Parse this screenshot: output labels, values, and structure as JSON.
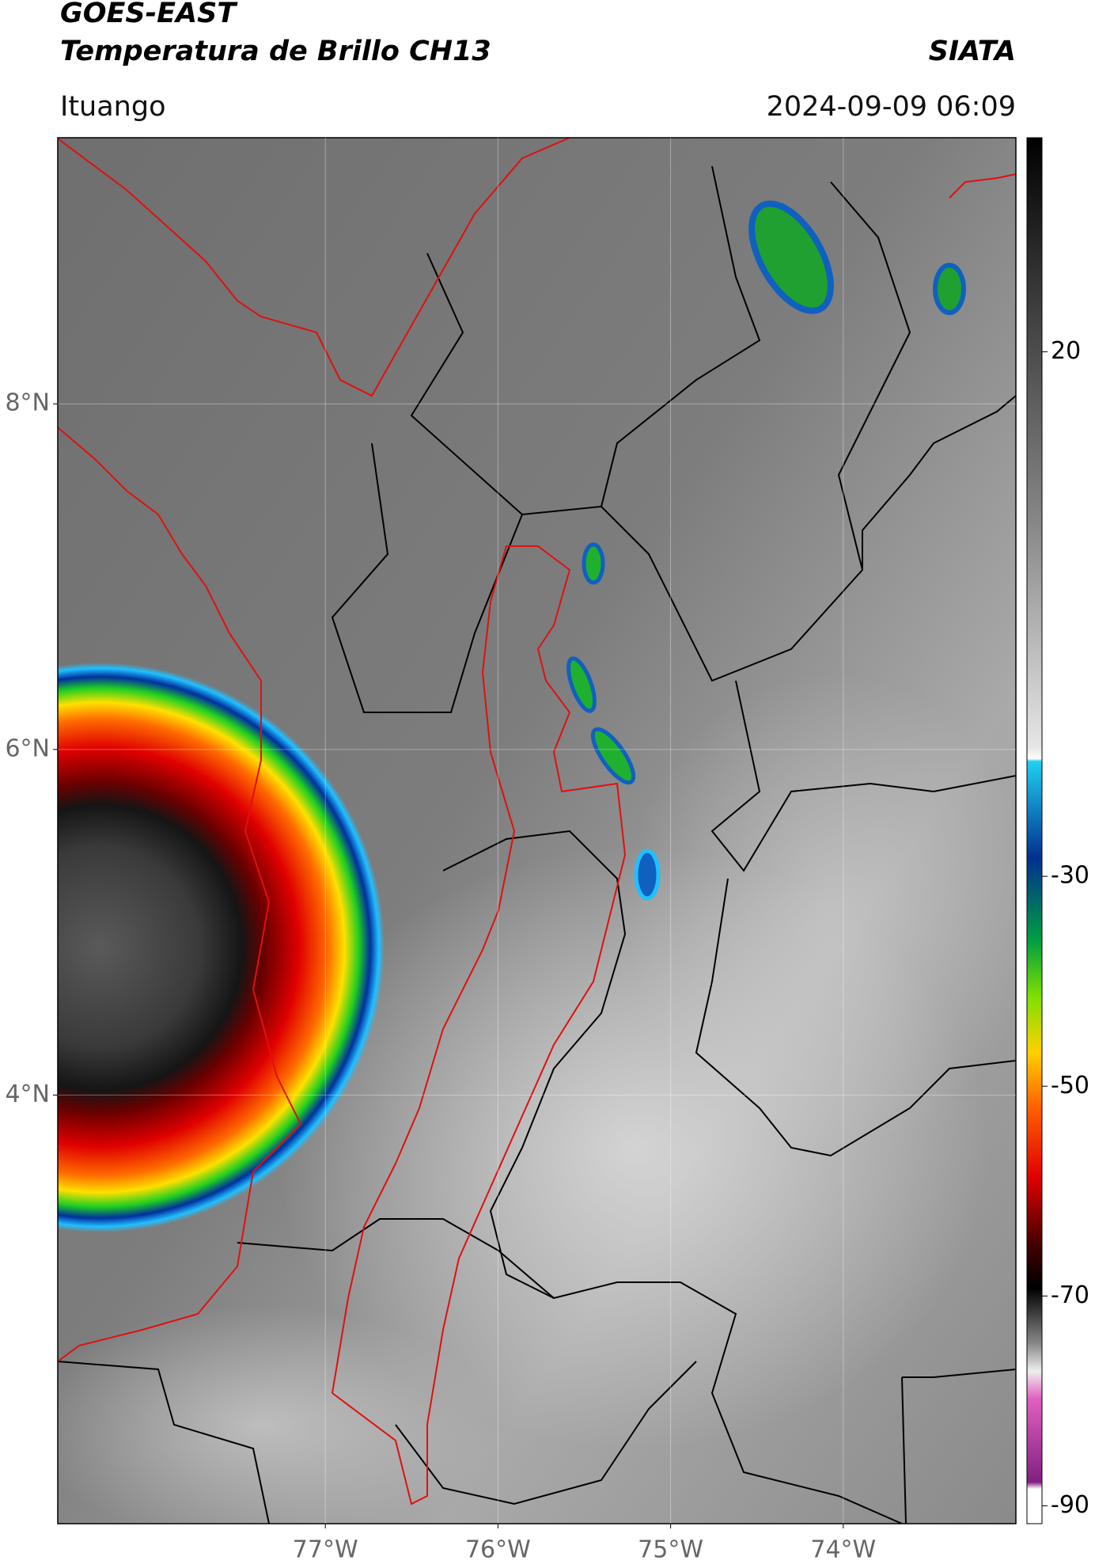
{
  "header": {
    "title_line1": "GOES-EAST",
    "title_line2": "Temperatura de Brillo CH13",
    "organization": "SIATA",
    "location": "Ituango",
    "datetime": "2024-09-09 06:09"
  },
  "map": {
    "xlim": [
      -78.55,
      -73.0
    ],
    "ylim": [
      1.52,
      9.54
    ],
    "xticks": [
      {
        "value": -77,
        "label": "77°W"
      },
      {
        "value": -76,
        "label": "76°W"
      },
      {
        "value": -75,
        "label": "75°W"
      },
      {
        "value": -74,
        "label": "74°W"
      }
    ],
    "yticks": [
      {
        "value": 8,
        "label": "8°N"
      },
      {
        "value": 6,
        "label": "6°N"
      },
      {
        "value": 4,
        "label": "4°N"
      }
    ],
    "grid": true
  },
  "colorbar": {
    "lim": [
      -91.7,
      40.4
    ],
    "ticks": [
      20,
      -30,
      -50,
      -70,
      -90
    ]
  }
}
